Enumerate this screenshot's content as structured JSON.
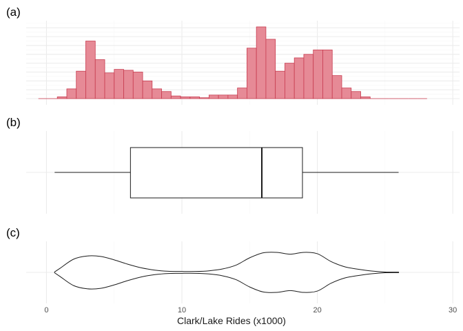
{
  "chart_data": {
    "type": "composite",
    "xlabel": "Clark/Lake Rides (x1000)",
    "xlim": [
      -1.5,
      30.5
    ],
    "x_ticks": [
      0,
      10,
      20,
      30
    ],
    "x_tick_labels": [
      "0",
      "10",
      "20",
      "30"
    ],
    "grid": true,
    "panels": [
      {
        "tag": "(a)",
        "type": "histogram",
        "color": "#c83c50",
        "fill": "#e68a96",
        "bin_width": 0.7,
        "bin_starts": [
          -0.6,
          0.1,
          0.8,
          1.5,
          2.2,
          2.9,
          3.6,
          4.3,
          5.0,
          5.7,
          6.4,
          7.1,
          7.8,
          8.5,
          9.2,
          9.9,
          10.6,
          11.3,
          12.0,
          12.7,
          13.4,
          14.1,
          14.8,
          15.5,
          16.2,
          16.9,
          17.6,
          18.3,
          19.0,
          19.7,
          20.4,
          21.1,
          21.8,
          22.5,
          23.2,
          23.9,
          24.6,
          25.3,
          26.0,
          26.7,
          27.4
        ],
        "counts": [
          0,
          0,
          2,
          11,
          31,
          65,
          44,
          29,
          33,
          32,
          30,
          20,
          11,
          8,
          3,
          2,
          2,
          1,
          4,
          4,
          4,
          12,
          57,
          81,
          67,
          31,
          40,
          46,
          50,
          55,
          55,
          26,
          12,
          8,
          2,
          0,
          0,
          0,
          0,
          0,
          0
        ],
        "ylim": [
          0,
          88
        ]
      },
      {
        "tag": "(b)",
        "type": "boxplot",
        "whisker_low": 0.6,
        "q1": 6.2,
        "median": 15.9,
        "q3": 18.9,
        "whisker_high": 26.0
      },
      {
        "tag": "(c)",
        "type": "violin",
        "x": [
          0.6,
          1,
          2,
          3,
          4,
          5,
          6,
          7,
          8,
          9,
          10,
          11,
          12,
          13,
          14,
          15,
          16,
          17,
          18,
          19,
          20,
          21,
          22,
          23,
          24,
          25,
          26
        ],
        "width": [
          0.02,
          0.18,
          0.58,
          0.72,
          0.7,
          0.55,
          0.36,
          0.2,
          0.1,
          0.05,
          0.04,
          0.04,
          0.07,
          0.15,
          0.32,
          0.64,
          0.86,
          0.88,
          0.8,
          0.88,
          0.82,
          0.48,
          0.25,
          0.14,
          0.06,
          0.015,
          0.01
        ]
      }
    ]
  }
}
